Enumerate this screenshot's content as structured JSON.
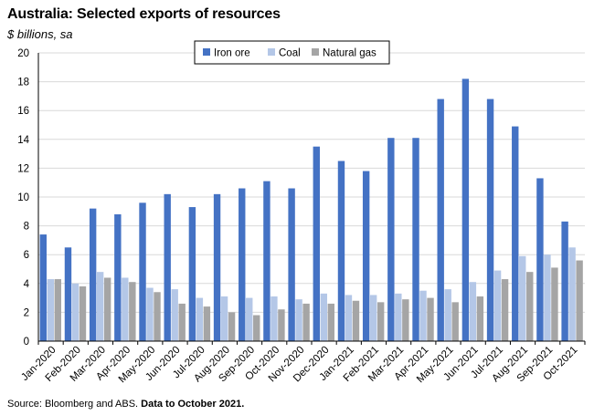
{
  "title": "Australia: Selected exports of resources",
  "subtitle": "$ billions, sa",
  "source_prefix": "Source: Bloomberg and ABS.",
  "source_bold": "Data to October 2021.",
  "colors": {
    "Iron ore": "#4472c4",
    "Coal": "#b4c7e7",
    "Natural gas": "#a5a5a5",
    "grid": "#d9d9d9",
    "axis": "#000000"
  },
  "chart_data": {
    "type": "bar",
    "grid": true,
    "legend": "top-center",
    "ylim": [
      0,
      20
    ],
    "yticks": [
      0,
      2,
      4,
      6,
      8,
      10,
      12,
      14,
      16,
      18,
      20
    ],
    "categories": [
      "Jan-2020",
      "Feb-2020",
      "Mar-2020",
      "Apr-2020",
      "May-2020",
      "Jun-2020",
      "Jul-2020",
      "Aug-2020",
      "Sep-2020",
      "Oct-2020",
      "Nov-2020",
      "Dec-2020",
      "Jan-2021",
      "Feb-2021",
      "Mar-2021",
      "Apr-2021",
      "May-2021",
      "Jun-2021",
      "Jul-2021",
      "Aug-2021",
      "Sep-2021",
      "Oct-2021"
    ],
    "series": [
      {
        "name": "Iron ore",
        "values": [
          7.4,
          6.5,
          9.2,
          8.8,
          9.6,
          10.2,
          9.3,
          10.2,
          10.6,
          11.1,
          10.6,
          13.5,
          12.5,
          11.8,
          14.1,
          14.1,
          16.8,
          18.2,
          16.8,
          14.9,
          11.3,
          8.3
        ]
      },
      {
        "name": "Coal",
        "values": [
          4.3,
          4.0,
          4.8,
          4.4,
          3.7,
          3.6,
          3.0,
          3.1,
          3.0,
          3.1,
          2.9,
          3.3,
          3.2,
          3.2,
          3.3,
          3.5,
          3.6,
          4.1,
          4.9,
          5.9,
          6.0,
          6.5
        ]
      },
      {
        "name": "Natural gas",
        "values": [
          4.3,
          3.8,
          4.4,
          4.1,
          3.4,
          2.6,
          2.4,
          2.0,
          1.8,
          2.2,
          2.6,
          2.6,
          2.8,
          2.7,
          2.9,
          3.0,
          2.7,
          3.1,
          4.3,
          4.8,
          5.1,
          5.6
        ]
      }
    ]
  }
}
